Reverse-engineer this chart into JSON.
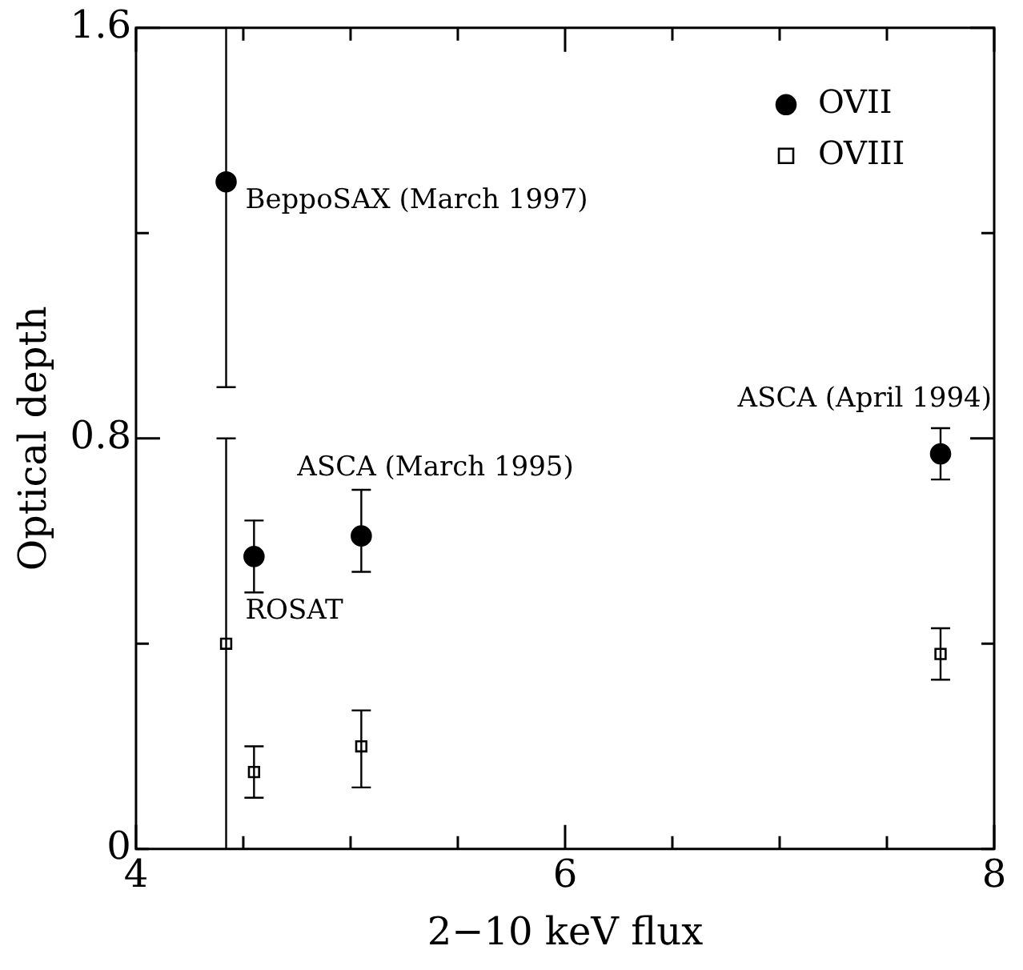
{
  "chart_data": {
    "type": "scatter",
    "xlabel": "2−10 keV flux",
    "ylabel": "Optical depth",
    "xlim": [
      4,
      8
    ],
    "xticks": [
      4,
      {
        "value": 4.5,
        "label": null
      },
      {
        "value": 5,
        "label": null
      },
      {
        "value": 5.5,
        "label": null
      },
      6,
      {
        "value": 6.5,
        "label": null
      },
      {
        "value": 7,
        "label": null
      },
      {
        "value": 7.5,
        "label": null
      },
      8
    ],
    "ylim": [
      0,
      1.6
    ],
    "yticks": [
      0,
      {
        "value": 0.4,
        "label": null
      },
      0.8,
      {
        "value": 1.2,
        "label": null
      },
      1.6
    ],
    "series": [
      {
        "name": "OVII",
        "color": "#000000",
        "marker": "circle",
        "x": [
          4.42,
          4.55,
          5.05,
          7.75
        ],
        "values": [
          1.3,
          0.57,
          0.61,
          0.77
        ],
        "errors": [
          [
            0.9,
            1.6
          ],
          [
            0.5,
            0.64
          ],
          [
            0.54,
            0.7
          ],
          [
            0.72,
            0.82
          ]
        ]
      },
      {
        "name": "OVIII",
        "color": "#000000",
        "marker": "square",
        "x": [
          4.42,
          4.55,
          5.05,
          7.75
        ],
        "values": [
          0.4,
          0.15,
          0.2,
          0.38
        ],
        "errors": [
          [
            0,
            0.8
          ],
          [
            0.1,
            0.2
          ],
          [
            0.12,
            0.27
          ],
          [
            0.33,
            0.43
          ]
        ]
      }
    ],
    "annotations": [
      {
        "text": "BeppoSAX (March 1997)",
        "x": 4.42,
        "y": 1.3
      },
      {
        "text": "ASCA (March 1995)",
        "x": 5.05,
        "y": 0.61
      },
      {
        "text": "ROSAT",
        "x": 4.42,
        "y": 0.4
      },
      {
        "text": "ASCA (April 1994)",
        "x": 7.75,
        "y": 0.77
      }
    ],
    "legend": "top right",
    "grid": false
  }
}
